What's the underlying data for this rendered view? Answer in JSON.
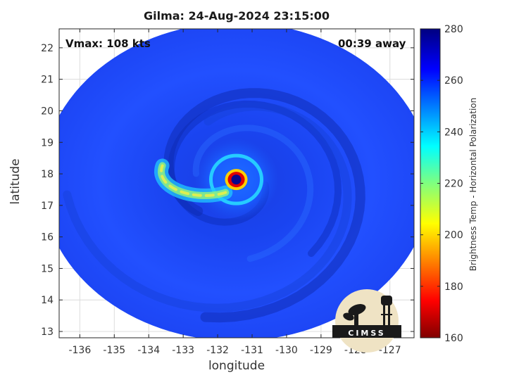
{
  "title": "Gilma: 24-Aug-2024 23:15:00",
  "vmax_label": "Vmax: 108 kts",
  "away_label": "00:39 away",
  "logo_text": "CIMSS",
  "colorbar": {
    "label": "Brightness Temp - Horizontal Polarization",
    "min": 160,
    "max": 280,
    "ticks": [
      160,
      180,
      200,
      220,
      240,
      260,
      280
    ],
    "colormap": "jet"
  },
  "chart_data": {
    "type": "heatmap",
    "title": "Gilma: 24-Aug-2024 23:15:00",
    "xlabel": "longitude",
    "ylabel": "latitude",
    "xlim": [
      -136.6,
      -126.3
    ],
    "ylim": [
      12.8,
      22.6
    ],
    "xticks": [
      -136,
      -135,
      -134,
      -133,
      -132,
      -131,
      -130,
      -129,
      -128,
      -127
    ],
    "yticks": [
      13,
      14,
      15,
      16,
      17,
      18,
      19,
      20,
      21,
      22
    ],
    "grid": true,
    "swath": {
      "center_lon": -131.46,
      "center_lat": 17.75,
      "radius_lon": 5.65,
      "radius_lat": 5.05
    },
    "storm_center": {
      "lon": -131.46,
      "lat": 17.82
    },
    "features": [
      {
        "name": "eye",
        "lon": -131.46,
        "lat": 17.82,
        "brightness_temp": 272
      },
      {
        "name": "eyewall",
        "lon": -131.46,
        "lat": 17.82,
        "brightness_temp": 175
      },
      {
        "name": "rainband",
        "lon": -133.2,
        "lat": 17.3,
        "brightness_temp": 215
      }
    ]
  }
}
